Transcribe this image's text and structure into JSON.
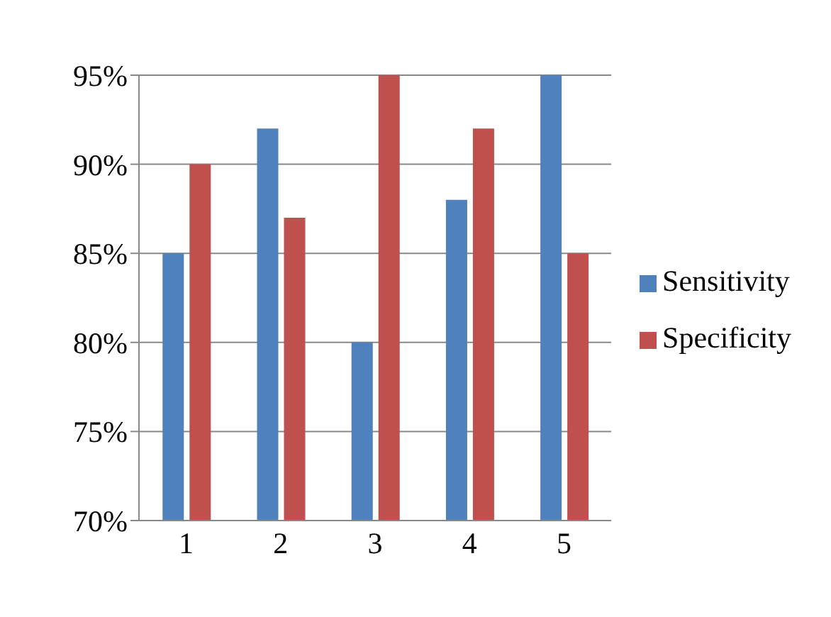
{
  "chart_data": {
    "type": "bar",
    "categories": [
      "1",
      "2",
      "3",
      "4",
      "5"
    ],
    "series": [
      {
        "name": "Sensitivity",
        "color": "#4f81bd",
        "values": [
          85,
          92,
          80,
          88,
          95
        ]
      },
      {
        "name": "Specificity",
        "color": "#c0504d",
        "values": [
          90,
          87,
          95,
          92,
          85
        ]
      }
    ],
    "ylim": [
      70,
      95
    ],
    "yticks": [
      {
        "value": 70,
        "label": "70%"
      },
      {
        "value": 75,
        "label": "75%"
      },
      {
        "value": 80,
        "label": "80%"
      },
      {
        "value": 85,
        "label": "85%"
      },
      {
        "value": 90,
        "label": "90%"
      },
      {
        "value": 95,
        "label": "95%"
      }
    ],
    "grid": "y",
    "legend": "right"
  }
}
